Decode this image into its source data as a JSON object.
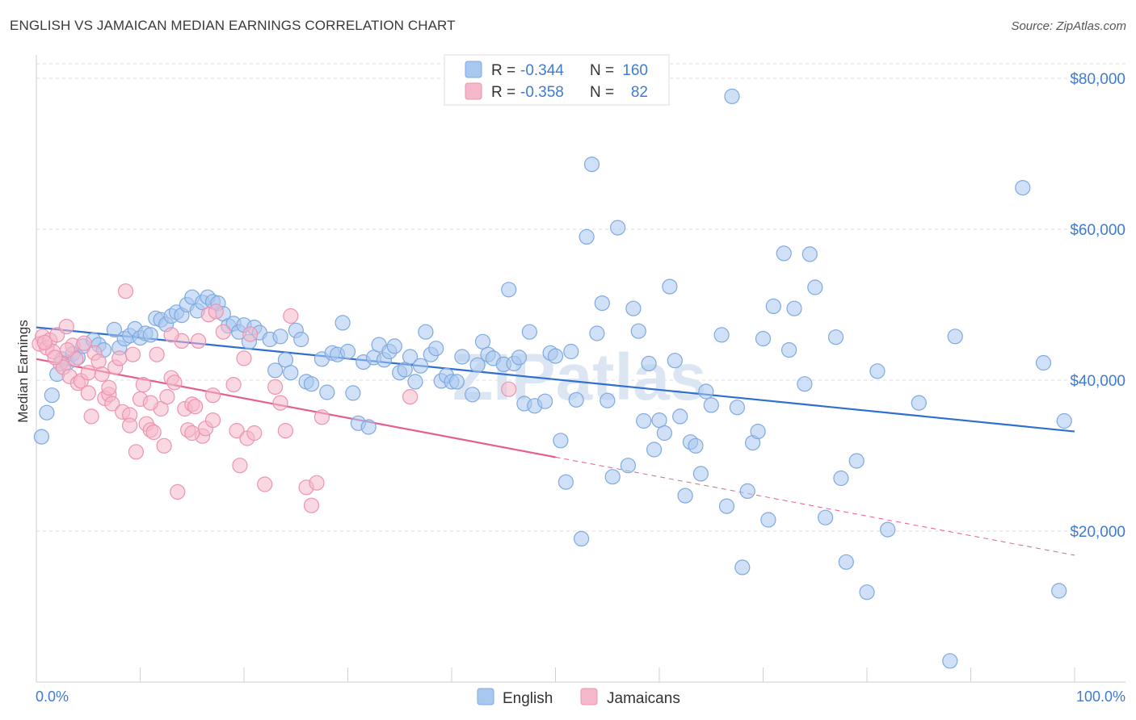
{
  "header": {
    "title": "ENGLISH VS JAMAICAN MEDIAN EARNINGS CORRELATION CHART",
    "source": "Source: ZipAtlas.com"
  },
  "watermark": "ZIPatlas",
  "legend_top": [
    {
      "r_label": "R =",
      "r_value": "-0.344",
      "n_label": "N =",
      "n_value": "160",
      "color": "#a9c8f0"
    },
    {
      "r_label": "R =",
      "r_value": "-0.358",
      "n_label": "N =",
      "n_value": "82",
      "color": "#f5b8cb"
    }
  ],
  "legend_bottom": [
    {
      "label": "English",
      "color": "#a9c8f0"
    },
    {
      "label": "Jamaicans",
      "color": "#f5b8cb"
    }
  ],
  "chart_data": {
    "type": "scatter",
    "ylabel": "Median Earnings",
    "x_tick_labels": [
      "0.0%",
      "100.0%"
    ],
    "y_tick_labels": [
      "$20,000",
      "$40,000",
      "$60,000",
      "$80,000"
    ],
    "y_ticks": [
      20000,
      40000,
      60000,
      80000
    ],
    "xlim": [
      0,
      100
    ],
    "ylim": [
      0,
      82000
    ],
    "grid": true,
    "series": [
      {
        "name": "English",
        "color": "#a9c8f0",
        "stroke": "#7fa9e0",
        "line_color": "#2f6fd0",
        "trend": {
          "x": [
            0,
            100
          ],
          "y": [
            47000,
            33200
          ],
          "dashed_from": null
        },
        "points": [
          [
            0.5,
            32500
          ],
          [
            1,
            35700
          ],
          [
            1.5,
            38000
          ],
          [
            2,
            40800
          ],
          [
            2.5,
            42800
          ],
          [
            3,
            42300
          ],
          [
            3.5,
            43500
          ],
          [
            4,
            43000
          ],
          [
            4.5,
            44500
          ],
          [
            5.5,
            45300
          ],
          [
            6,
            44700
          ],
          [
            6.5,
            44000
          ],
          [
            7.5,
            46700
          ],
          [
            8,
            44300
          ],
          [
            8.5,
            45500
          ],
          [
            9,
            45900
          ],
          [
            9.5,
            46800
          ],
          [
            10,
            45600
          ],
          [
            10.5,
            46200
          ],
          [
            11,
            46000
          ],
          [
            11.5,
            48200
          ],
          [
            12,
            48000
          ],
          [
            12.5,
            47400
          ],
          [
            13,
            48500
          ],
          [
            13.5,
            49000
          ],
          [
            14,
            48600
          ],
          [
            14.5,
            50000
          ],
          [
            15,
            51000
          ],
          [
            15.5,
            49200
          ],
          [
            16,
            50300
          ],
          [
            16.5,
            51000
          ],
          [
            17,
            50400
          ],
          [
            17.5,
            50200
          ],
          [
            18,
            48800
          ],
          [
            18.5,
            47200
          ],
          [
            19,
            47500
          ],
          [
            19.5,
            46400
          ],
          [
            20,
            47300
          ],
          [
            20.5,
            45100
          ],
          [
            21,
            47000
          ],
          [
            21.5,
            46300
          ],
          [
            22.5,
            45400
          ],
          [
            23,
            41300
          ],
          [
            23.5,
            45800
          ],
          [
            24,
            42700
          ],
          [
            24.5,
            41000
          ],
          [
            25,
            46600
          ],
          [
            25.5,
            45400
          ],
          [
            26,
            39800
          ],
          [
            26.5,
            39500
          ],
          [
            27.5,
            42800
          ],
          [
            28,
            38400
          ],
          [
            28.5,
            43600
          ],
          [
            29,
            43400
          ],
          [
            29.5,
            47600
          ],
          [
            30,
            43800
          ],
          [
            30.5,
            38300
          ],
          [
            31,
            34300
          ],
          [
            31.5,
            42400
          ],
          [
            32,
            33800
          ],
          [
            32.5,
            43000
          ],
          [
            33,
            44700
          ],
          [
            33.5,
            42700
          ],
          [
            34,
            43800
          ],
          [
            34.5,
            44500
          ],
          [
            35,
            41000
          ],
          [
            35.5,
            41400
          ],
          [
            36,
            43100
          ],
          [
            36.5,
            39800
          ],
          [
            37,
            41900
          ],
          [
            37.5,
            46400
          ],
          [
            38,
            43400
          ],
          [
            38.5,
            44200
          ],
          [
            39,
            39900
          ],
          [
            39.5,
            40600
          ],
          [
            40,
            39800
          ],
          [
            40.5,
            39800
          ],
          [
            41,
            43100
          ],
          [
            42,
            38100
          ],
          [
            42.5,
            42000
          ],
          [
            43,
            45100
          ],
          [
            43.5,
            43400
          ],
          [
            44,
            42900
          ],
          [
            45,
            42100
          ],
          [
            45.5,
            52000
          ],
          [
            46,
            42200
          ],
          [
            46.5,
            43000
          ],
          [
            47,
            36900
          ],
          [
            47.5,
            46400
          ],
          [
            48,
            36600
          ],
          [
            49,
            37200
          ],
          [
            49.5,
            43600
          ],
          [
            50,
            43200
          ],
          [
            50.5,
            32000
          ],
          [
            51,
            26500
          ],
          [
            51.5,
            43800
          ],
          [
            52,
            37400
          ],
          [
            52.5,
            19000
          ],
          [
            53,
            59000
          ],
          [
            53.5,
            68600
          ],
          [
            54,
            46200
          ],
          [
            54.5,
            50200
          ],
          [
            55,
            37300
          ],
          [
            55.5,
            27200
          ],
          [
            56,
            60200
          ],
          [
            57,
            28700
          ],
          [
            57.5,
            49500
          ],
          [
            58,
            46500
          ],
          [
            58.5,
            34600
          ],
          [
            59,
            42200
          ],
          [
            59.5,
            30800
          ],
          [
            60,
            34700
          ],
          [
            60.5,
            33000
          ],
          [
            61,
            52400
          ],
          [
            61.5,
            42600
          ],
          [
            62,
            35200
          ],
          [
            62.5,
            24700
          ],
          [
            63,
            31800
          ],
          [
            63.5,
            31300
          ],
          [
            64,
            27600
          ],
          [
            64.5,
            38500
          ],
          [
            65,
            36700
          ],
          [
            66,
            46000
          ],
          [
            66.5,
            23300
          ],
          [
            67,
            77600
          ],
          [
            67.5,
            36400
          ],
          [
            68,
            15200
          ],
          [
            68.5,
            25300
          ],
          [
            69,
            31700
          ],
          [
            69.5,
            33200
          ],
          [
            70,
            45500
          ],
          [
            70.5,
            21500
          ],
          [
            71,
            49800
          ],
          [
            72,
            56800
          ],
          [
            72.5,
            44000
          ],
          [
            73,
            49500
          ],
          [
            74,
            39500
          ],
          [
            74.5,
            56700
          ],
          [
            75,
            52300
          ],
          [
            76,
            21800
          ],
          [
            77,
            45700
          ],
          [
            77.5,
            27000
          ],
          [
            78,
            15900
          ],
          [
            79,
            29300
          ],
          [
            80,
            11900
          ],
          [
            81,
            41200
          ],
          [
            82,
            20200
          ],
          [
            85,
            37000
          ],
          [
            88,
            2800
          ],
          [
            88.5,
            45800
          ],
          [
            95,
            65500
          ],
          [
            97,
            42300
          ],
          [
            98.5,
            12100
          ],
          [
            99,
            34600
          ]
        ]
      },
      {
        "name": "Jamaicans",
        "color": "#f5b8cb",
        "stroke": "#ec93b0",
        "line_color": "#e55f8d",
        "trend": {
          "x": [
            0,
            100
          ],
          "y": [
            42800,
            16800
          ],
          "dashed_from": 50
        },
        "points": [
          [
            0.3,
            44800
          ],
          [
            0.6,
            45800
          ],
          [
            1,
            44300
          ],
          [
            1.3,
            45300
          ],
          [
            1.6,
            43800
          ],
          [
            2,
            46000
          ],
          [
            2.3,
            42200
          ],
          [
            2.6,
            41700
          ],
          [
            2.9,
            47100
          ],
          [
            3.2,
            40500
          ],
          [
            3.5,
            44600
          ],
          [
            3.8,
            42800
          ],
          [
            4,
            39600
          ],
          [
            4.3,
            39900
          ],
          [
            4.6,
            44900
          ],
          [
            5,
            38300
          ],
          [
            5.3,
            35200
          ],
          [
            5.6,
            43600
          ],
          [
            6,
            42500
          ],
          [
            6.3,
            40800
          ],
          [
            6.6,
            37600
          ],
          [
            7,
            38100
          ],
          [
            7.3,
            36900
          ],
          [
            7.6,
            41700
          ],
          [
            8,
            42900
          ],
          [
            8.3,
            35800
          ],
          [
            8.6,
            51800
          ],
          [
            9,
            35400
          ],
          [
            9.3,
            43400
          ],
          [
            9.6,
            30500
          ],
          [
            10,
            37500
          ],
          [
            10.3,
            39400
          ],
          [
            10.6,
            34200
          ],
          [
            11,
            33400
          ],
          [
            11.3,
            33100
          ],
          [
            11.6,
            43400
          ],
          [
            12,
            36200
          ],
          [
            12.3,
            31300
          ],
          [
            12.6,
            37800
          ],
          [
            13,
            40300
          ],
          [
            13.3,
            39700
          ],
          [
            13.6,
            25200
          ],
          [
            14,
            45200
          ],
          [
            14.3,
            36200
          ],
          [
            14.6,
            33400
          ],
          [
            15,
            36800
          ],
          [
            15.3,
            36500
          ],
          [
            15.6,
            45200
          ],
          [
            16,
            32600
          ],
          [
            16.3,
            33600
          ],
          [
            16.6,
            48700
          ],
          [
            17,
            34700
          ],
          [
            17.3,
            49100
          ],
          [
            18,
            46400
          ],
          [
            19,
            39400
          ],
          [
            19.3,
            33300
          ],
          [
            19.6,
            28700
          ],
          [
            20,
            42900
          ],
          [
            20.3,
            32300
          ],
          [
            20.6,
            46100
          ],
          [
            22,
            26200
          ],
          [
            23,
            39100
          ],
          [
            24,
            33300
          ],
          [
            24.5,
            48500
          ],
          [
            26,
            25800
          ],
          [
            26.5,
            23400
          ],
          [
            27,
            26400
          ],
          [
            27.5,
            35100
          ],
          [
            0.8,
            45000
          ],
          [
            1.8,
            43000
          ],
          [
            3,
            44000
          ],
          [
            5,
            41000
          ],
          [
            7,
            39000
          ],
          [
            9,
            34000
          ],
          [
            11,
            37000
          ],
          [
            13,
            46000
          ],
          [
            15,
            33000
          ],
          [
            17,
            38000
          ],
          [
            21,
            33000
          ],
          [
            23.5,
            37000
          ],
          [
            36,
            37800
          ],
          [
            45.5,
            38800
          ]
        ]
      }
    ]
  }
}
